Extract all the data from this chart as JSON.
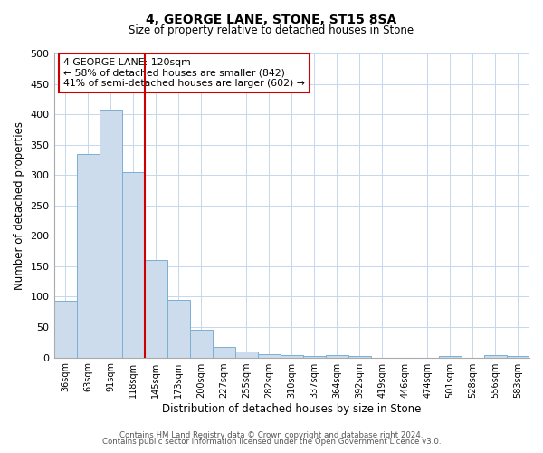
{
  "title": "4, GEORGE LANE, STONE, ST15 8SA",
  "subtitle": "Size of property relative to detached houses in Stone",
  "xlabel": "Distribution of detached houses by size in Stone",
  "ylabel": "Number of detached properties",
  "bar_labels": [
    "36sqm",
    "63sqm",
    "91sqm",
    "118sqm",
    "145sqm",
    "173sqm",
    "200sqm",
    "227sqm",
    "255sqm",
    "282sqm",
    "310sqm",
    "337sqm",
    "364sqm",
    "392sqm",
    "419sqm",
    "446sqm",
    "474sqm",
    "501sqm",
    "528sqm",
    "556sqm",
    "583sqm"
  ],
  "bar_values": [
    93,
    335,
    407,
    305,
    160,
    95,
    45,
    18,
    10,
    5,
    4,
    2,
    4,
    2,
    0,
    0,
    0,
    3,
    0,
    4,
    2
  ],
  "bar_color": "#ccdcec",
  "bar_edge_color": "#7aafd4",
  "ylim": [
    0,
    500
  ],
  "yticks": [
    0,
    50,
    100,
    150,
    200,
    250,
    300,
    350,
    400,
    450,
    500
  ],
  "vline_index": 3,
  "vline_color": "#cc0000",
  "annotation_title": "4 GEORGE LANE: 120sqm",
  "annotation_line1": "← 58% of detached houses are smaller (842)",
  "annotation_line2": "41% of semi-detached houses are larger (602) →",
  "annotation_box_color": "#cc0000",
  "footnote1": "Contains HM Land Registry data © Crown copyright and database right 2024.",
  "footnote2": "Contains public sector information licensed under the Open Government Licence v3.0.",
  "background_color": "#ffffff",
  "grid_color": "#c5d8ec"
}
